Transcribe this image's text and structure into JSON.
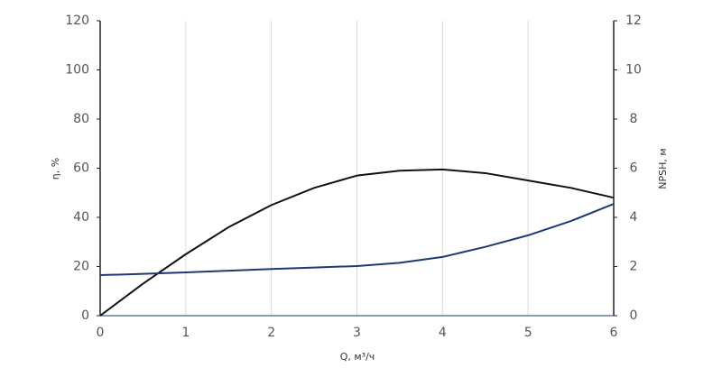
{
  "chart_data": {
    "type": "line",
    "x_label": "Q, м³/ч",
    "y_label": "η, %",
    "y2_label": "NPSH, м",
    "x": [
      0,
      0.5,
      1,
      1.5,
      2,
      2.5,
      3,
      3.5,
      4,
      4.5,
      5,
      5.5,
      6
    ],
    "series": [
      {
        "name": "η",
        "color": "#111111",
        "values": [
          0,
          13,
          25,
          36,
          45,
          52,
          57,
          59,
          59.5,
          58,
          55,
          52,
          48
        ]
      },
      {
        "name": "NPSH",
        "color": "#1f3a73",
        "axis": "y2",
        "values": [
          1.65,
          1.7,
          1.76,
          1.83,
          1.9,
          1.96,
          2.02,
          2.15,
          2.39,
          2.8,
          3.27,
          3.85,
          4.55
        ]
      }
    ],
    "xlim": [
      0,
      6
    ],
    "xticks": [
      0,
      1,
      2,
      3,
      4,
      5,
      6
    ],
    "ylim": [
      0,
      120
    ],
    "yticks": [
      0,
      20,
      40,
      60,
      80,
      100,
      120
    ],
    "y2lim": [
      0,
      12
    ],
    "y2ticks": [
      0,
      2,
      4,
      6,
      8,
      10,
      12
    ],
    "grid": true
  }
}
